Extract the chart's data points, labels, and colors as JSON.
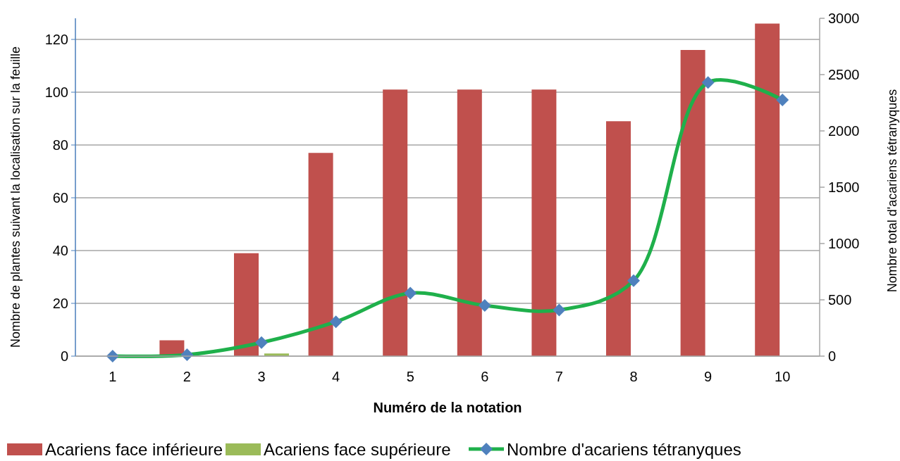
{
  "chart_data": {
    "type": "bar",
    "xlabel": "Numéro de la notation",
    "ylabel": "Nombre de plantes suivant la localisation sur la feuille",
    "y2label": "Nombre total d'acariens tétranyques",
    "categories": [
      "1",
      "2",
      "3",
      "4",
      "5",
      "6",
      "7",
      "8",
      "9",
      "10"
    ],
    "series": [
      {
        "name": "Acariens face inférieure",
        "color": "#c0504d",
        "values": [
          0,
          6,
          39,
          77,
          101,
          101,
          101,
          89,
          116,
          126
        ]
      },
      {
        "name": "Acariens face supérieure",
        "color": "#9bbb59",
        "values": [
          0,
          null,
          1,
          0,
          0,
          0,
          0,
          0,
          0,
          0
        ]
      },
      {
        "name": "Nombre d'acariens tétranyques",
        "type": "line",
        "axis": "y2",
        "color": "#1fb04b",
        "marker": "diamond",
        "values": [
          0,
          12,
          120,
          305,
          560,
          450,
          410,
          670,
          2430,
          2275
        ]
      }
    ],
    "ylim": [
      0,
      128
    ],
    "yticks": [
      0,
      20,
      40,
      60,
      80,
      100,
      120
    ],
    "y2lim": [
      0,
      3000
    ],
    "y2ticks": [
      0,
      500,
      1000,
      1500,
      2000,
      2500,
      3000
    ],
    "grid": "y",
    "legend": "bottom"
  }
}
